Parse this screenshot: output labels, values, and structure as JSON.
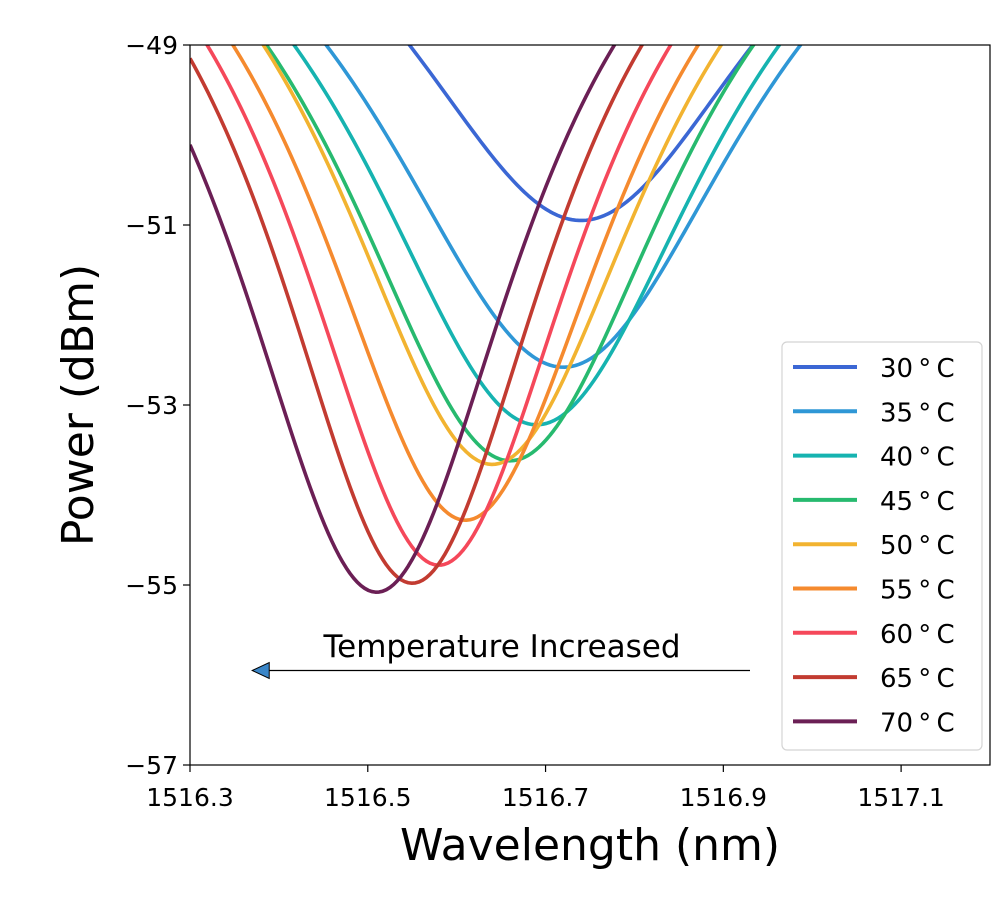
{
  "chart_data": {
    "type": "line",
    "title": "",
    "xlabel": "Wavelength (nm)",
    "ylabel": "Power (dBm)",
    "xlim": [
      1516.3,
      1517.2
    ],
    "ylim": [
      -57,
      -49
    ],
    "xticks": [
      1516.3,
      1516.5,
      1516.7,
      1516.9,
      1517.1
    ],
    "xtick_labels": [
      "1516.3",
      "1516.5",
      "1516.7",
      "1516.9",
      "1517.1"
    ],
    "yticks": [
      -57,
      -55,
      -53,
      -51,
      -49
    ],
    "ytick_labels": [
      "−57",
      "−55",
      "−53",
      "−51",
      "−49"
    ],
    "grid": false,
    "legend_position": "lower-right",
    "series": [
      {
        "name": "30$^\\circ$C",
        "label": "30 ° C",
        "color": "#3b67d4",
        "min_x": 1516.74,
        "min_y": -50.95,
        "width": 0.255
      },
      {
        "name": "35$^\\circ$C",
        "label": "35 ° C",
        "color": "#2f97d6",
        "min_x": 1516.72,
        "min_y": -52.58,
        "width": 0.26
      },
      {
        "name": "40$^\\circ$C",
        "label": "40 ° C",
        "color": "#16b3b0",
        "min_x": 1516.69,
        "min_y": -53.22,
        "width": 0.245
      },
      {
        "name": "45$^\\circ$C",
        "label": "45 ° C",
        "color": "#27ba6f",
        "min_x": 1516.66,
        "min_y": -53.62,
        "width": 0.235
      },
      {
        "name": "50$^\\circ$C",
        "label": "50 ° C",
        "color": "#f2b330",
        "min_x": 1516.64,
        "min_y": -53.66,
        "width": 0.22
      },
      {
        "name": "55$^\\circ$C",
        "label": "55 ° C",
        "color": "#f58a2e",
        "min_x": 1516.61,
        "min_y": -54.28,
        "width": 0.21
      },
      {
        "name": "60$^\\circ$C",
        "label": "60 ° C",
        "color": "#f5485a",
        "min_x": 1516.58,
        "min_y": -54.78,
        "width": 0.2
      },
      {
        "name": "65$^\\circ$C",
        "label": "65 ° C",
        "color": "#c23b31",
        "min_x": 1516.55,
        "min_y": -54.98,
        "width": 0.195
      },
      {
        "name": "70$^\\circ$C",
        "label": "70 ° C",
        "color": "#6b1f55",
        "min_x": 1516.51,
        "min_y": -55.08,
        "width": 0.2
      }
    ],
    "annotation": {
      "text": "Temperature Increased",
      "arrow_from": [
        1516.93,
        -55.95
      ],
      "arrow_to": [
        1516.37,
        -55.95
      ],
      "arrow_color": "#3a86c8"
    }
  }
}
